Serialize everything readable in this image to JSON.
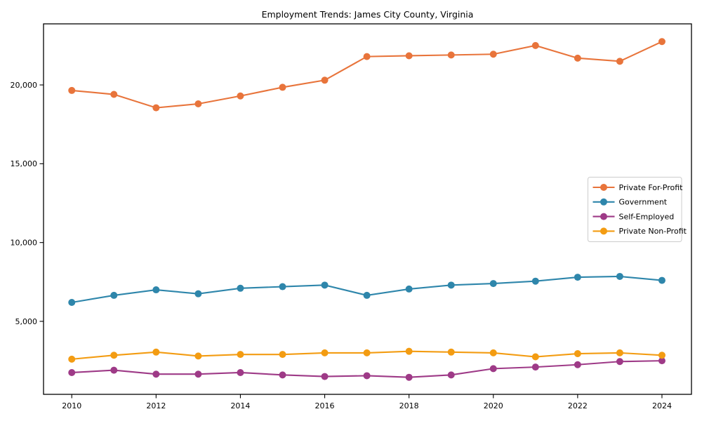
{
  "page": {
    "background": "#ffffff",
    "border_color": "#000000"
  },
  "chart_data": {
    "type": "line",
    "title": "Employment Trends: James City County, Virginia",
    "xlabel": "",
    "ylabel": "",
    "grid": false,
    "legend_position": "center-right",
    "xlim": [
      2009.33,
      2024.7
    ],
    "ylim": [
      369,
      23875
    ],
    "x": [
      2010,
      2011,
      2012,
      2013,
      2014,
      2015,
      2016,
      2017,
      2018,
      2019,
      2020,
      2021,
      2022,
      2023,
      2024
    ],
    "x_ticks": [
      "2010",
      "2012",
      "2014",
      "2016",
      "2018",
      "2020",
      "2022",
      "2024"
    ],
    "x_tick_values": [
      2010,
      2012,
      2014,
      2016,
      2018,
      2020,
      2022,
      2024
    ],
    "y_ticks": [
      {
        "value": 5000,
        "label": "5,000"
      },
      {
        "value": 10000,
        "label": "10,000"
      },
      {
        "value": 15000,
        "label": "15,000"
      },
      {
        "value": 20000,
        "label": "20,000"
      }
    ],
    "series": [
      {
        "name": "Private For-Profit",
        "color": "#E8743B",
        "values": [
          19650,
          19400,
          18550,
          18800,
          19300,
          19850,
          20300,
          21800,
          21850,
          21900,
          21950,
          22500,
          21700,
          21500,
          22750
        ]
      },
      {
        "name": "Government",
        "color": "#2E86AB",
        "values": [
          6200,
          6650,
          7000,
          6750,
          7100,
          7200,
          7300,
          6650,
          7050,
          7300,
          7400,
          7550,
          7800,
          7850,
          7600
        ]
      },
      {
        "name": "Self-Employed",
        "color": "#9E3A87",
        "values": [
          1750,
          1900,
          1650,
          1650,
          1750,
          1600,
          1500,
          1550,
          1450,
          1600,
          2000,
          2100,
          2250,
          2450,
          2500
        ]
      },
      {
        "name": "Private Non-Profit",
        "color": "#F39C12",
        "values": [
          2600,
          2850,
          3050,
          2800,
          2900,
          2900,
          3000,
          3000,
          3100,
          3050,
          3000,
          2750,
          2950,
          3000,
          2850
        ]
      }
    ],
    "legend": {
      "entries": [
        "Private For-Profit",
        "Government",
        "Self-Employed",
        "Private Non-Profit"
      ],
      "border_color": "#cccccc",
      "background": "#ffffff"
    }
  }
}
